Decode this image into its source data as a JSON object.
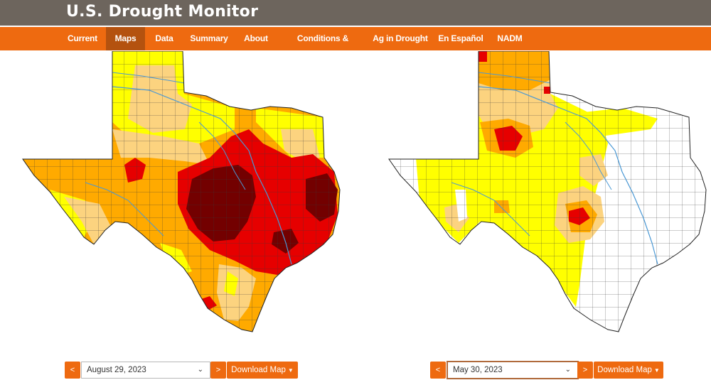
{
  "header": {
    "title": "U.S. Drought Monitor"
  },
  "nav": {
    "items": [
      {
        "label": "Current"
      },
      {
        "label": "Maps",
        "active": true
      },
      {
        "label": "Data"
      },
      {
        "label": "Summary"
      },
      {
        "label": "About"
      },
      {
        "label": "Conditions & Outlooks"
      },
      {
        "label": "Ag in Drought"
      },
      {
        "label": "En Español"
      },
      {
        "label": "NADM"
      }
    ]
  },
  "maps": [
    {
      "state": "Texas",
      "date": "August 29, 2023",
      "prev_label": "<",
      "next_label": ">",
      "download_label": "Download Map",
      "dominant_categories": [
        "D1",
        "D2",
        "D3",
        "D4"
      ]
    },
    {
      "state": "Texas",
      "date": "May 30, 2023",
      "prev_label": "<",
      "next_label": ">",
      "download_label": "Download Map",
      "dominant_categories": [
        "None",
        "D0",
        "D1",
        "D2",
        "D3"
      ]
    }
  ],
  "legend_colors": {
    "none": "#ffffff",
    "D0": "#ffff00",
    "D1": "#fcd37f",
    "D2": "#ffaa00",
    "D3": "#e60000",
    "D4": "#730000",
    "rivers": "#4a98d4",
    "county_lines": "#3a3a3a"
  },
  "colors": {
    "header_bg": "#6d655d",
    "nav_bg": "#ee6a10",
    "nav_active": "#b4520f",
    "button_bg": "#ee6a10"
  },
  "icons": [
    "chevron-down-icon",
    "caret-down-icon"
  ]
}
